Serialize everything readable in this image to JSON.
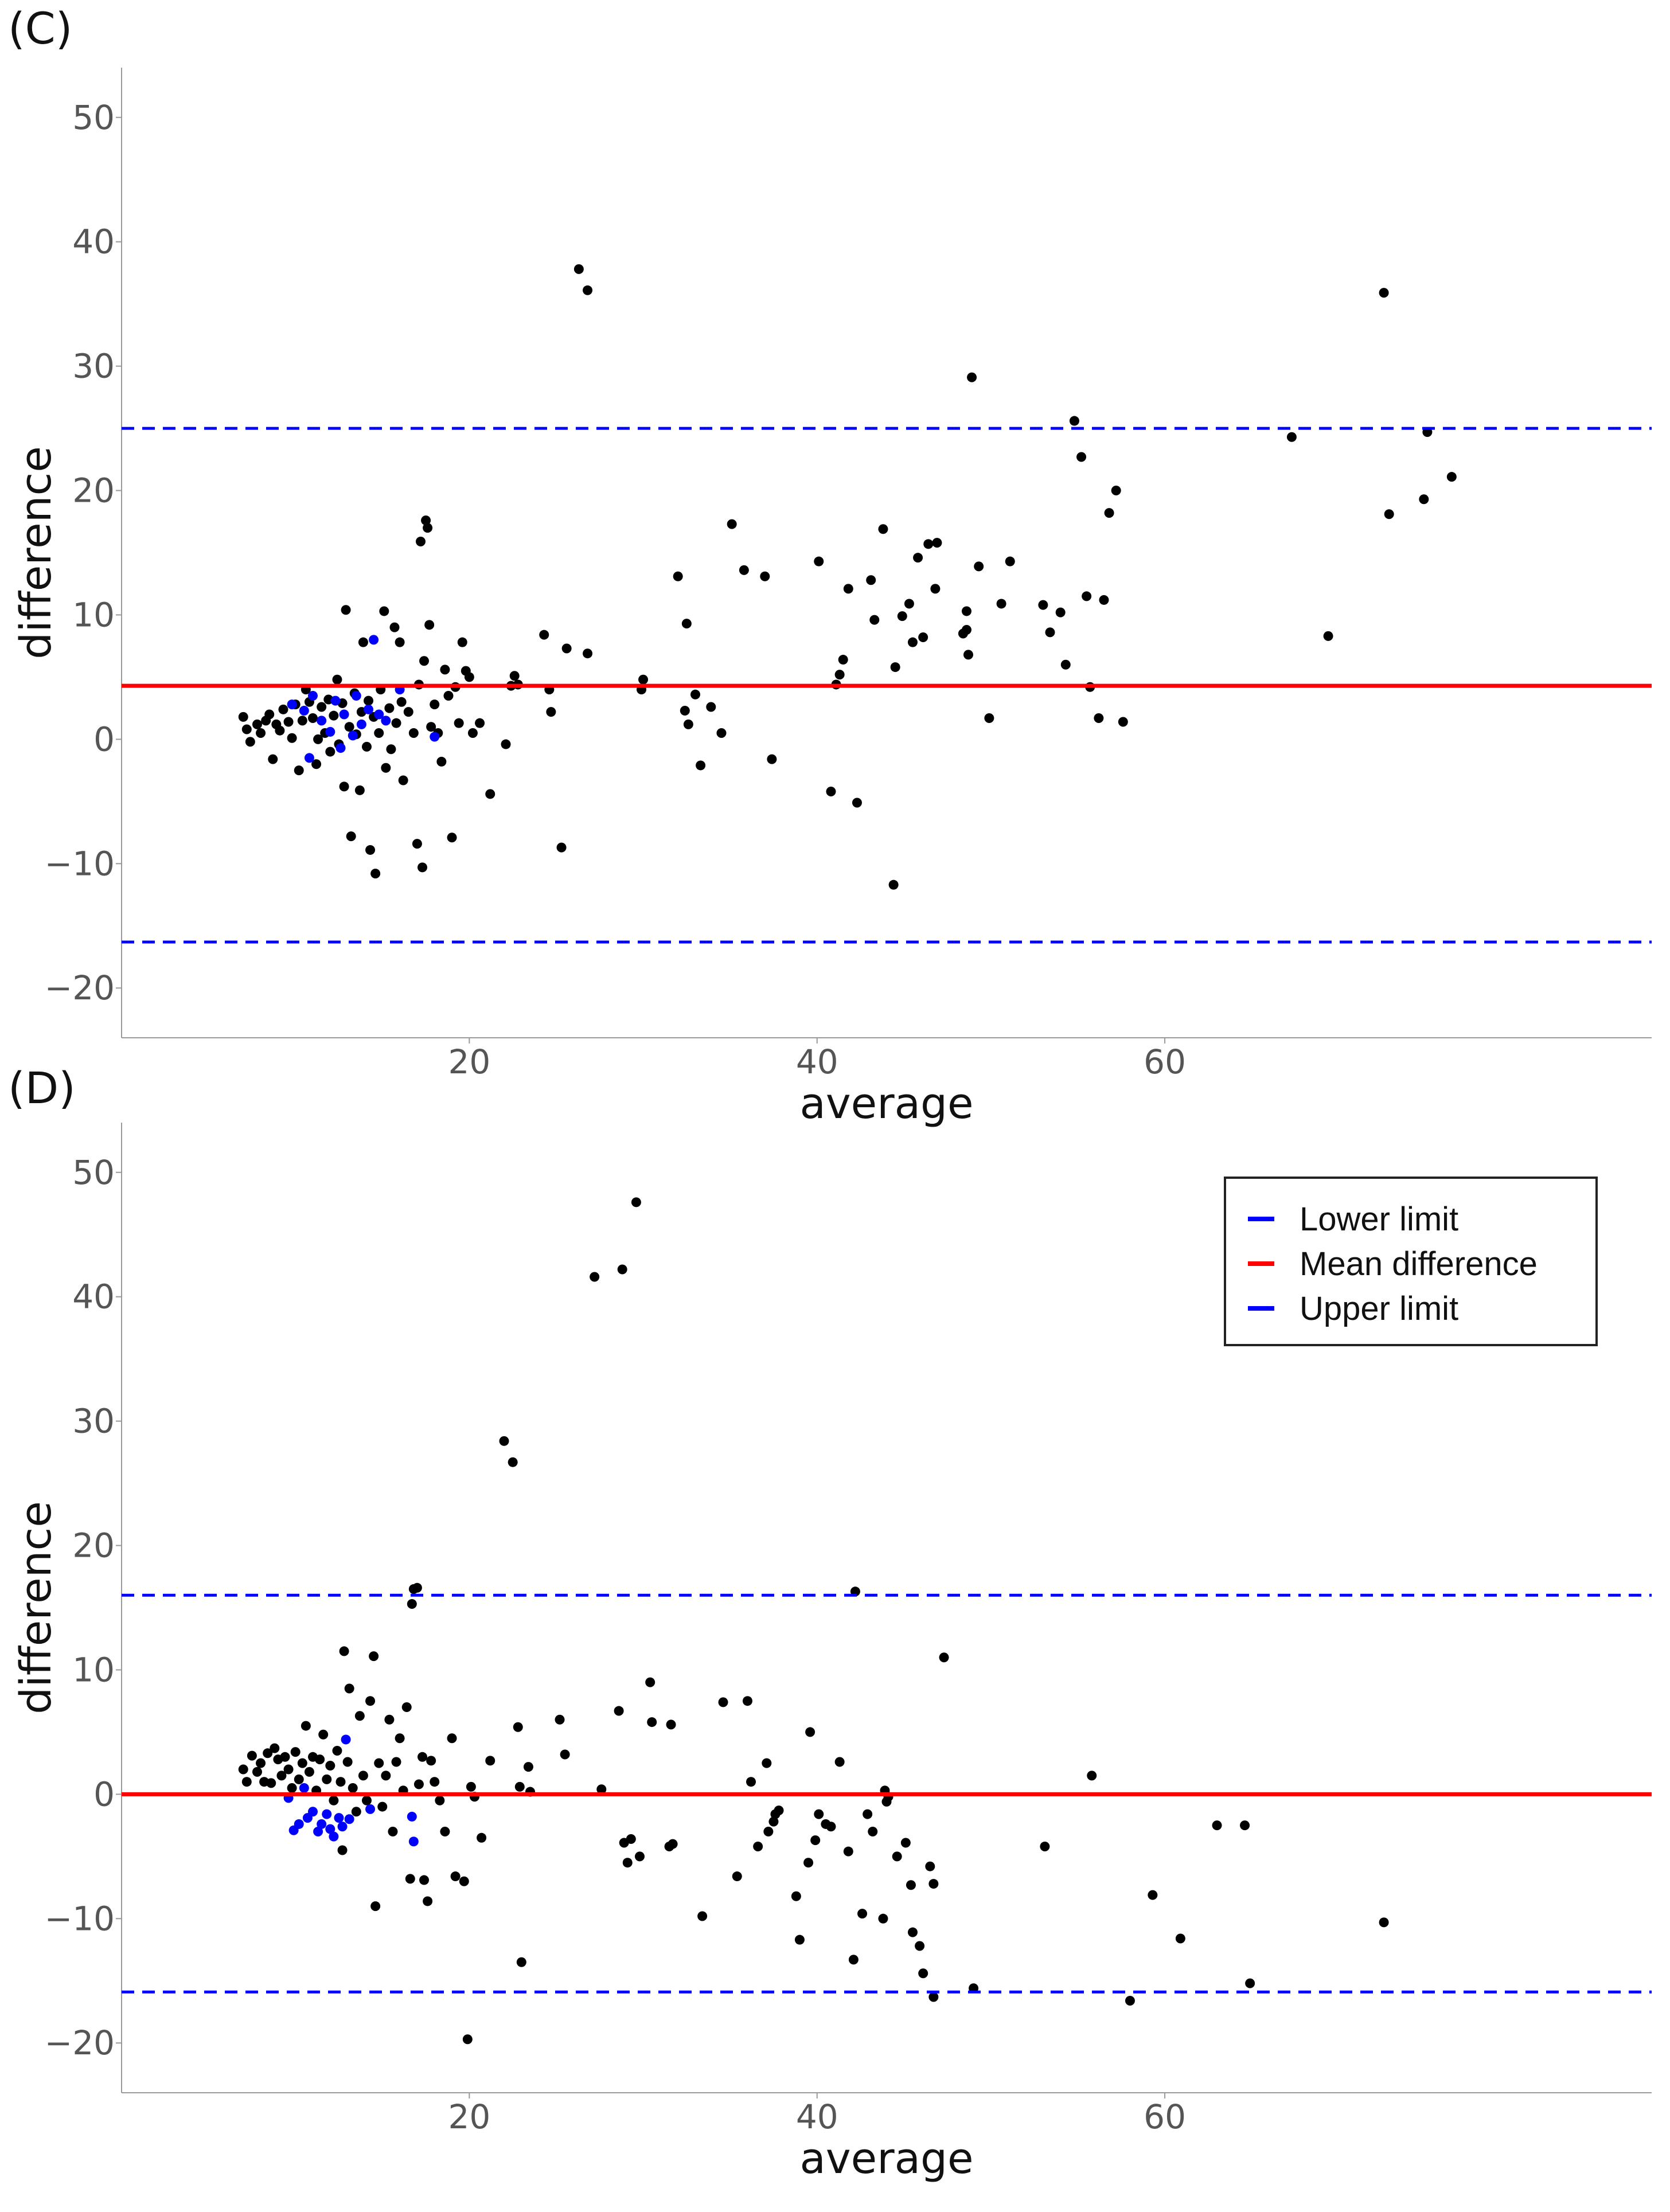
{
  "colors": {
    "points": "#000000",
    "highlight_points": "#0000ff",
    "mean_line": "#ff0000",
    "limit_lines": "#0000ff",
    "axis": "#999999"
  },
  "chart_data": [
    {
      "panel_label": "(C)",
      "type": "scatter",
      "xlabel": "average",
      "ylabel": "difference",
      "xlim": [
        0,
        88
      ],
      "ylim": [
        -24,
        54
      ],
      "xticks": [
        20,
        40,
        60
      ],
      "yticks": [
        -20,
        -10,
        0,
        10,
        20,
        30,
        40,
        50
      ],
      "mean_difference": 4.3,
      "upper_limit": 25.0,
      "lower_limit": -16.3,
      "legend": null,
      "blue_points": [
        [
          9.8,
          2.8
        ],
        [
          10.5,
          2.3
        ],
        [
          11.0,
          3.5
        ],
        [
          11.5,
          1.5
        ],
        [
          12.0,
          0.6
        ],
        [
          12.3,
          3.1
        ],
        [
          12.8,
          2.0
        ],
        [
          13.3,
          0.3
        ],
        [
          13.5,
          3.5
        ],
        [
          13.8,
          1.2
        ],
        [
          14.2,
          2.4
        ],
        [
          14.5,
          8.0
        ],
        [
          14.8,
          2.0
        ],
        [
          15.2,
          1.5
        ],
        [
          16.0,
          4.0
        ],
        [
          18.0,
          0.2
        ],
        [
          10.8,
          -1.5
        ],
        [
          12.6,
          -0.7
        ]
      ],
      "black_points": [
        [
          7.0,
          1.8
        ],
        [
          7.2,
          0.8
        ],
        [
          7.4,
          -0.2
        ],
        [
          7.8,
          1.2
        ],
        [
          8.0,
          0.5
        ],
        [
          8.3,
          1.5
        ],
        [
          8.5,
          2.0
        ],
        [
          8.7,
          -1.6
        ],
        [
          8.9,
          1.2
        ],
        [
          9.1,
          0.7
        ],
        [
          9.3,
          2.4
        ],
        [
          9.6,
          1.4
        ],
        [
          9.8,
          0.1
        ],
        [
          10.0,
          2.8
        ],
        [
          10.2,
          -2.5
        ],
        [
          10.4,
          1.5
        ],
        [
          10.6,
          4.0
        ],
        [
          10.8,
          3.0
        ],
        [
          11.0,
          1.7
        ],
        [
          11.2,
          -2.0
        ],
        [
          11.3,
          0.0
        ],
        [
          11.5,
          2.6
        ],
        [
          11.7,
          0.5
        ],
        [
          11.9,
          3.2
        ],
        [
          12.0,
          -1.0
        ],
        [
          12.2,
          1.9
        ],
        [
          12.4,
          4.8
        ],
        [
          12.5,
          -0.4
        ],
        [
          12.7,
          2.9
        ],
        [
          12.8,
          -3.8
        ],
        [
          12.9,
          10.4
        ],
        [
          13.1,
          1.0
        ],
        [
          13.2,
          -7.8
        ],
        [
          13.4,
          3.7
        ],
        [
          13.5,
          0.4
        ],
        [
          13.7,
          -4.1
        ],
        [
          13.8,
          2.2
        ],
        [
          13.9,
          7.8
        ],
        [
          14.1,
          -0.6
        ],
        [
          14.2,
          3.1
        ],
        [
          14.3,
          -8.9
        ],
        [
          14.5,
          1.8
        ],
        [
          14.6,
          -10.8
        ],
        [
          14.8,
          0.5
        ],
        [
          14.9,
          4.0
        ],
        [
          15.1,
          10.3
        ],
        [
          15.2,
          -2.3
        ],
        [
          15.4,
          2.5
        ],
        [
          15.5,
          -0.8
        ],
        [
          15.7,
          9.0
        ],
        [
          15.8,
          1.3
        ],
        [
          16.0,
          7.8
        ],
        [
          16.1,
          3.0
        ],
        [
          16.2,
          -3.3
        ],
        [
          16.5,
          2.2
        ],
        [
          16.8,
          0.5
        ],
        [
          17.0,
          -8.4
        ],
        [
          17.1,
          4.4
        ],
        [
          17.2,
          15.9
        ],
        [
          17.3,
          -10.3
        ],
        [
          17.4,
          6.3
        ],
        [
          17.5,
          17.6
        ],
        [
          17.6,
          17.0
        ],
        [
          17.7,
          9.2
        ],
        [
          17.8,
          1.0
        ],
        [
          18.0,
          2.8
        ],
        [
          18.2,
          0.5
        ],
        [
          18.4,
          -1.8
        ],
        [
          18.6,
          5.6
        ],
        [
          18.8,
          3.5
        ],
        [
          19.0,
          -7.9
        ],
        [
          19.2,
          4.2
        ],
        [
          19.4,
          1.3
        ],
        [
          19.6,
          7.8
        ],
        [
          19.8,
          5.5
        ],
        [
          20.0,
          5.0
        ],
        [
          20.2,
          0.5
        ],
        [
          20.6,
          1.3
        ],
        [
          21.2,
          -4.4
        ],
        [
          22.1,
          -0.4
        ],
        [
          22.4,
          4.3
        ],
        [
          22.6,
          5.1
        ],
        [
          22.8,
          4.4
        ],
        [
          24.3,
          8.4
        ],
        [
          24.6,
          4.0
        ],
        [
          24.7,
          2.2
        ],
        [
          25.3,
          -8.7
        ],
        [
          25.6,
          7.3
        ],
        [
          26.3,
          37.8
        ],
        [
          26.8,
          36.1
        ],
        [
          26.8,
          6.9
        ],
        [
          29.9,
          4.0
        ],
        [
          30.0,
          4.8
        ],
        [
          32.0,
          13.1
        ],
        [
          32.4,
          2.3
        ],
        [
          32.5,
          9.3
        ],
        [
          32.6,
          1.2
        ],
        [
          33.0,
          3.6
        ],
        [
          33.3,
          -2.1
        ],
        [
          33.9,
          2.6
        ],
        [
          34.5,
          0.5
        ],
        [
          35.1,
          17.3
        ],
        [
          35.8,
          13.6
        ],
        [
          37.0,
          13.1
        ],
        [
          37.4,
          -1.6
        ],
        [
          40.1,
          14.3
        ],
        [
          40.8,
          -4.2
        ],
        [
          41.1,
          4.4
        ],
        [
          41.3,
          5.2
        ],
        [
          41.5,
          6.4
        ],
        [
          41.8,
          12.1
        ],
        [
          42.3,
          -5.1
        ],
        [
          43.1,
          12.8
        ],
        [
          43.3,
          9.6
        ],
        [
          43.8,
          16.9
        ],
        [
          44.4,
          -11.7
        ],
        [
          44.5,
          5.8
        ],
        [
          44.9,
          9.9
        ],
        [
          45.3,
          10.9
        ],
        [
          45.5,
          7.8
        ],
        [
          45.8,
          14.6
        ],
        [
          46.1,
          8.2
        ],
        [
          46.4,
          15.7
        ],
        [
          46.8,
          12.1
        ],
        [
          46.9,
          15.8
        ],
        [
          48.4,
          8.5
        ],
        [
          48.6,
          8.8
        ],
        [
          48.6,
          10.3
        ],
        [
          48.7,
          6.8
        ],
        [
          48.9,
          29.1
        ],
        [
          49.3,
          13.9
        ],
        [
          49.9,
          1.7
        ],
        [
          50.6,
          10.9
        ],
        [
          51.1,
          14.3
        ],
        [
          53.0,
          10.8
        ],
        [
          53.4,
          8.6
        ],
        [
          54.0,
          10.2
        ],
        [
          54.3,
          6.0
        ],
        [
          54.8,
          25.6
        ],
        [
          55.2,
          22.7
        ],
        [
          55.5,
          11.5
        ],
        [
          55.7,
          4.2
        ],
        [
          56.2,
          1.7
        ],
        [
          56.5,
          11.2
        ],
        [
          56.8,
          18.2
        ],
        [
          57.2,
          20.0
        ],
        [
          57.6,
          1.4
        ],
        [
          67.3,
          24.3
        ],
        [
          69.4,
          8.3
        ],
        [
          72.6,
          35.9
        ],
        [
          72.9,
          18.1
        ],
        [
          74.9,
          19.3
        ],
        [
          75.1,
          24.7
        ],
        [
          76.5,
          21.1
        ]
      ]
    },
    {
      "panel_label": "(D)",
      "type": "scatter",
      "xlabel": "average",
      "ylabel": "difference",
      "xlim": [
        0,
        88
      ],
      "ylim": [
        -24,
        54
      ],
      "xticks": [
        20,
        40,
        60
      ],
      "yticks": [
        -20,
        -10,
        0,
        10,
        20,
        30,
        40,
        50
      ],
      "mean_difference": 0.0,
      "upper_limit": 16.0,
      "lower_limit": -15.9,
      "legend": {
        "placement": "top-right",
        "entries": [
          {
            "label": "Lower limit",
            "style": "dashed",
            "color": "#0000ff"
          },
          {
            "label": "Mean difference",
            "style": "solid",
            "color": "#ff0000"
          },
          {
            "label": "Upper limit",
            "style": "dashed",
            "color": "#0000ff"
          }
        ]
      },
      "blue_points": [
        [
          9.6,
          -0.3
        ],
        [
          9.9,
          -2.9
        ],
        [
          10.2,
          -2.4
        ],
        [
          10.5,
          0.5
        ],
        [
          10.7,
          -1.9
        ],
        [
          11.0,
          -1.4
        ],
        [
          11.3,
          -3.0
        ],
        [
          11.5,
          -2.4
        ],
        [
          11.8,
          -1.6
        ],
        [
          12.0,
          -2.8
        ],
        [
          12.2,
          -3.4
        ],
        [
          12.5,
          -1.9
        ],
        [
          12.7,
          -2.6
        ],
        [
          12.9,
          4.4
        ],
        [
          13.1,
          -2.0
        ],
        [
          14.3,
          -1.2
        ],
        [
          16.7,
          -1.8
        ],
        [
          16.8,
          -3.8
        ]
      ],
      "black_points": [
        [
          7.0,
          2.0
        ],
        [
          7.2,
          1.0
        ],
        [
          7.5,
          3.1
        ],
        [
          7.8,
          1.8
        ],
        [
          8.0,
          2.5
        ],
        [
          8.2,
          1.0
        ],
        [
          8.4,
          3.3
        ],
        [
          8.6,
          0.9
        ],
        [
          8.8,
          3.7
        ],
        [
          9.0,
          2.8
        ],
        [
          9.2,
          1.5
        ],
        [
          9.4,
          3.0
        ],
        [
          9.6,
          2.0
        ],
        [
          9.8,
          0.5
        ],
        [
          10.0,
          3.4
        ],
        [
          10.2,
          1.2
        ],
        [
          10.4,
          2.5
        ],
        [
          10.6,
          5.5
        ],
        [
          10.8,
          1.8
        ],
        [
          11.0,
          3.0
        ],
        [
          11.2,
          0.3
        ],
        [
          11.4,
          2.8
        ],
        [
          11.6,
          4.8
        ],
        [
          11.8,
          1.2
        ],
        [
          12.0,
          2.3
        ],
        [
          12.2,
          -0.5
        ],
        [
          12.4,
          3.5
        ],
        [
          12.6,
          1.0
        ],
        [
          12.7,
          -4.5
        ],
        [
          12.8,
          11.5
        ],
        [
          13.0,
          2.6
        ],
        [
          13.1,
          8.5
        ],
        [
          13.3,
          0.5
        ],
        [
          13.5,
          -1.4
        ],
        [
          13.7,
          6.3
        ],
        [
          13.9,
          1.5
        ],
        [
          14.1,
          -0.5
        ],
        [
          14.3,
          7.5
        ],
        [
          14.5,
          11.1
        ],
        [
          14.6,
          -9.0
        ],
        [
          14.8,
          2.5
        ],
        [
          15.0,
          -1.0
        ],
        [
          15.2,
          1.5
        ],
        [
          15.4,
          6.0
        ],
        [
          15.6,
          -3.0
        ],
        [
          15.8,
          2.6
        ],
        [
          16.0,
          4.5
        ],
        [
          16.2,
          0.3
        ],
        [
          16.4,
          7.0
        ],
        [
          16.6,
          -6.8
        ],
        [
          16.7,
          15.3
        ],
        [
          16.8,
          16.5
        ],
        [
          17.0,
          16.6
        ],
        [
          17.1,
          0.8
        ],
        [
          17.3,
          3.0
        ],
        [
          17.4,
          -6.9
        ],
        [
          17.6,
          -8.6
        ],
        [
          17.8,
          2.7
        ],
        [
          18.0,
          1.0
        ],
        [
          18.3,
          -0.5
        ],
        [
          18.6,
          -3.0
        ],
        [
          19.0,
          4.5
        ],
        [
          19.2,
          -6.6
        ],
        [
          19.7,
          -7.0
        ],
        [
          19.9,
          -19.7
        ],
        [
          20.1,
          0.6
        ],
        [
          20.3,
          -0.2
        ],
        [
          20.7,
          -3.5
        ],
        [
          21.2,
          2.7
        ],
        [
          22.0,
          28.4
        ],
        [
          22.5,
          26.7
        ],
        [
          22.8,
          5.4
        ],
        [
          22.9,
          0.6
        ],
        [
          23.0,
          -13.5
        ],
        [
          23.4,
          2.2
        ],
        [
          23.5,
          0.2
        ],
        [
          25.2,
          6.0
        ],
        [
          25.5,
          3.2
        ],
        [
          27.2,
          41.6
        ],
        [
          27.6,
          0.4
        ],
        [
          28.6,
          6.7
        ],
        [
          28.8,
          42.2
        ],
        [
          28.9,
          -3.9
        ],
        [
          29.1,
          -5.5
        ],
        [
          29.3,
          -3.6
        ],
        [
          29.6,
          47.6
        ],
        [
          29.8,
          -5.0
        ],
        [
          30.4,
          9.0
        ],
        [
          30.5,
          5.8
        ],
        [
          31.5,
          -4.2
        ],
        [
          31.6,
          5.6
        ],
        [
          31.7,
          -4.0
        ],
        [
          33.4,
          -9.8
        ],
        [
          34.6,
          7.4
        ],
        [
          35.4,
          -6.6
        ],
        [
          36.0,
          7.5
        ],
        [
          36.2,
          1.0
        ],
        [
          36.6,
          -4.2
        ],
        [
          37.1,
          2.5
        ],
        [
          37.2,
          -3.0
        ],
        [
          37.5,
          -2.2
        ],
        [
          37.6,
          -1.6
        ],
        [
          37.8,
          -1.3
        ],
        [
          38.8,
          -8.2
        ],
        [
          39.0,
          -11.7
        ],
        [
          39.5,
          -5.5
        ],
        [
          39.6,
          5.0
        ],
        [
          39.9,
          -3.7
        ],
        [
          40.1,
          -1.6
        ],
        [
          40.5,
          -2.4
        ],
        [
          40.8,
          -2.6
        ],
        [
          41.3,
          2.6
        ],
        [
          41.8,
          -4.6
        ],
        [
          42.1,
          -13.3
        ],
        [
          42.2,
          16.3
        ],
        [
          42.6,
          -9.6
        ],
        [
          42.9,
          -1.6
        ],
        [
          43.2,
          -3.0
        ],
        [
          43.8,
          -10.0
        ],
        [
          43.9,
          0.3
        ],
        [
          44.0,
          -0.6
        ],
        [
          44.1,
          -0.2
        ],
        [
          44.6,
          -5.0
        ],
        [
          45.1,
          -3.9
        ],
        [
          45.4,
          -7.3
        ],
        [
          45.5,
          -11.1
        ],
        [
          45.9,
          -12.2
        ],
        [
          46.1,
          -14.4
        ],
        [
          46.5,
          -5.8
        ],
        [
          46.7,
          -7.2
        ],
        [
          46.7,
          -16.3
        ],
        [
          47.3,
          11.0
        ],
        [
          49.0,
          -15.6
        ],
        [
          53.1,
          -4.2
        ],
        [
          55.8,
          1.5
        ],
        [
          58.0,
          -16.6
        ],
        [
          59.3,
          -8.1
        ],
        [
          60.9,
          -11.6
        ],
        [
          63.0,
          -2.5
        ],
        [
          64.6,
          -2.5
        ],
        [
          64.9,
          -15.2
        ],
        [
          72.6,
          -10.3
        ]
      ]
    }
  ]
}
